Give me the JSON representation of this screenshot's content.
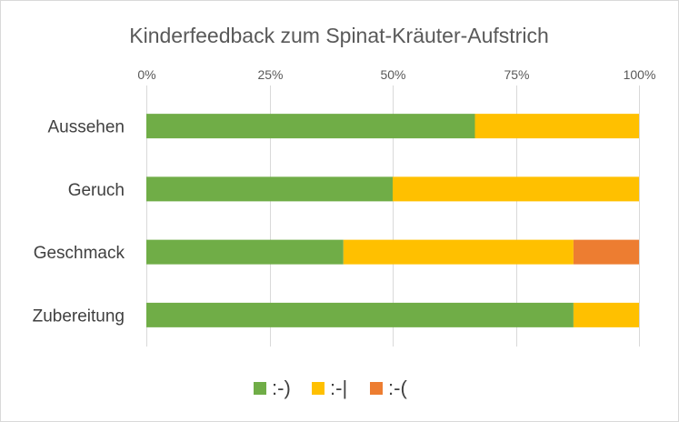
{
  "chart_data": {
    "type": "bar",
    "orientation": "horizontal",
    "stacked": "percent",
    "title": "Kinderfeedback zum Spinat-Kräuter-Aufstrich",
    "categories": [
      "Aussehen",
      "Geruch",
      "Geschmack",
      "Zubereitung"
    ],
    "series": [
      {
        "name": ":-)",
        "color": "#70ad47",
        "values": [
          0.667,
          0.5,
          0.4,
          0.867
        ]
      },
      {
        "name": ":-|",
        "color": "#ffc000",
        "values": [
          0.333,
          0.5,
          0.467,
          0.133
        ]
      },
      {
        "name": ":-(",
        "color": "#ed7d31",
        "values": [
          0,
          0,
          0.133,
          0
        ]
      }
    ],
    "x_ticks": [
      "0%",
      "25%",
      "50%",
      "75%",
      "100%"
    ],
    "xlim": [
      0,
      1
    ],
    "axis_position": "top",
    "grid": true,
    "legend_position": "bottom"
  }
}
